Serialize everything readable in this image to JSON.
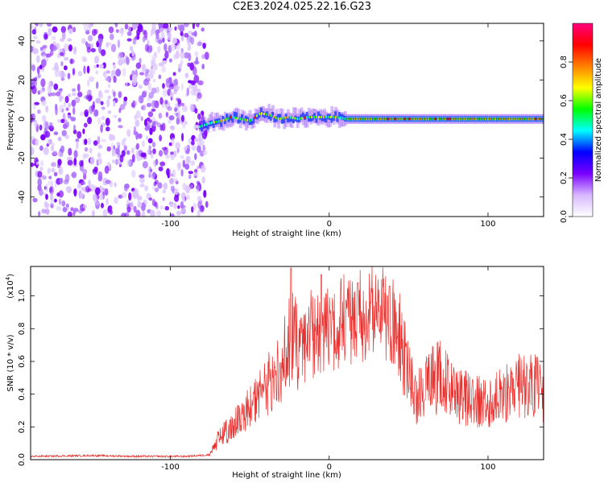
{
  "title": "C2E3.2024.025.22.16.G23",
  "chart_data": [
    {
      "type": "heatmap",
      "xlabel": "Height of straight line (km)",
      "ylabel": "Frequency (Hz)",
      "xlim": [
        -188,
        135
      ],
      "ylim": [
        -50,
        49
      ],
      "x_ticks": [
        -100,
        0,
        100
      ],
      "y_ticks": [
        -40,
        -20,
        0,
        20,
        40
      ],
      "x_tick_labels": [
        "-100",
        "0",
        "100"
      ],
      "y_tick_labels": [
        "-40",
        "-20",
        "0",
        "20",
        "40"
      ],
      "noise_region_x": [
        -188,
        -80
      ],
      "signal_track": {
        "x": [
          -82,
          -75,
          -68,
          -62,
          -56,
          -50,
          -44,
          -38,
          -32,
          -26,
          -20,
          -14,
          -8,
          -2,
          4,
          10,
          20,
          40,
          60,
          80,
          100,
          120,
          135
        ],
        "freq_hz": [
          -4,
          -2,
          -1,
          1,
          0,
          -1,
          3,
          2,
          0,
          1,
          0,
          1,
          1,
          1,
          1,
          0,
          0,
          0,
          0,
          0,
          0,
          0,
          0
        ]
      },
      "colorbar": {
        "label": "Normalized spectral amplitude",
        "range": [
          0,
          1
        ],
        "ticks": [
          0.0,
          0.2,
          0.4,
          0.6,
          0.8
        ],
        "tick_labels": [
          "0.0",
          "0.2",
          "0.4",
          "0.6",
          "0.8"
        ],
        "colormap": [
          "#ffffff",
          "#d8b8ff",
          "#7a00ff",
          "#0000ff",
          "#00ffff",
          "#00ff00",
          "#ffff00",
          "#ff8000",
          "#ff0000",
          "#ff007f"
        ]
      },
      "grid": false
    },
    {
      "type": "line",
      "xlabel": "Height of straight line (km)",
      "ylabel": "SNR (10 * v/v)",
      "y_scale_label": "(x10",
      "y_scale_exponent": "4",
      "xlim": [
        -188,
        135
      ],
      "ylim": [
        0,
        1.18
      ],
      "x_ticks": [
        -100,
        0,
        100
      ],
      "y_ticks": [
        0.0,
        0.2,
        0.4,
        0.6,
        0.8,
        1.0
      ],
      "x_tick_labels": [
        "-100",
        "0",
        "100"
      ],
      "y_tick_labels": [
        "0.0",
        "0.2",
        "0.4",
        "0.6",
        "0.8",
        "1.0"
      ],
      "color": "#e8322f",
      "envelope": {
        "x": [
          -188,
          -150,
          -120,
          -90,
          -75,
          -70,
          -60,
          -50,
          -40,
          -30,
          -24,
          -20,
          -10,
          0,
          10,
          20,
          30,
          40,
          45,
          50,
          55,
          60,
          70,
          80,
          90,
          100,
          110,
          120,
          130,
          135
        ],
        "y": [
          0.02,
          0.025,
          0.02,
          0.02,
          0.03,
          0.12,
          0.22,
          0.3,
          0.42,
          0.55,
          0.75,
          0.7,
          0.75,
          0.8,
          0.85,
          0.87,
          0.9,
          0.85,
          0.7,
          0.5,
          0.35,
          0.45,
          0.5,
          0.4,
          0.35,
          0.35,
          0.4,
          0.45,
          0.45,
          0.35
        ]
      },
      "peaks": [
        {
          "x": -24,
          "y": 1.17
        },
        {
          "x": -5,
          "y": 1.13
        },
        {
          "x": 18,
          "y": 1.08
        },
        {
          "x": 38,
          "y": 1.06
        }
      ],
      "grid": false
    }
  ]
}
